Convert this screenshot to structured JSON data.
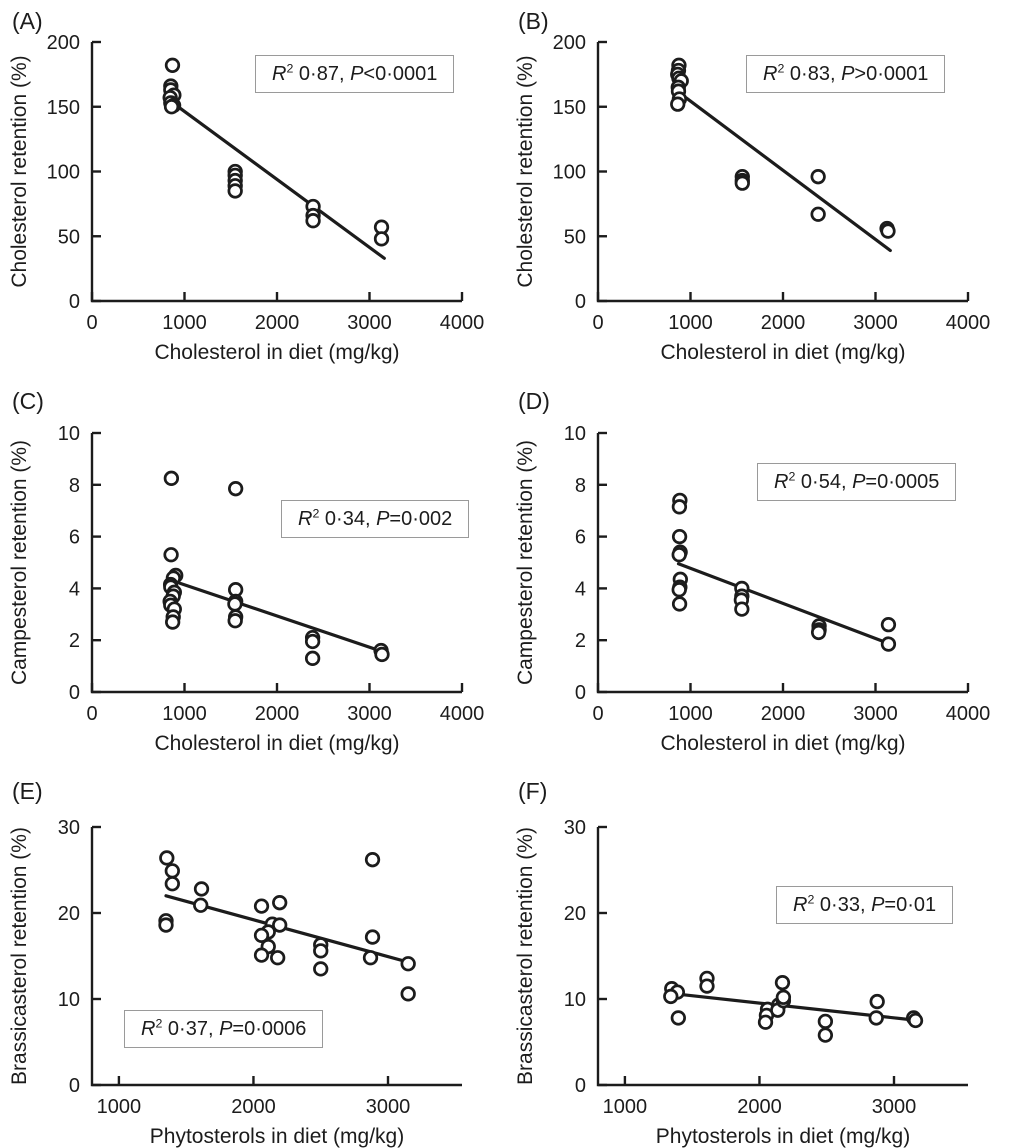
{
  "figure": {
    "description": "Six-panel scatter figure of sterol retention versus dietary sterol content"
  },
  "chart_data": [
    {
      "type": "scatter",
      "panel_label": "(A)",
      "xlabel": "Cholesterol in diet (mg/kg)",
      "ylabel": "Cholesterol retention (%)",
      "xlim": [
        0,
        4000
      ],
      "ylim": [
        0,
        200
      ],
      "xticks": [
        0,
        1000,
        2000,
        3000,
        4000
      ],
      "yticks": [
        0,
        50,
        100,
        150,
        200
      ],
      "grid": false,
      "points": [
        [
          870,
          182
        ],
        [
          852,
          166
        ],
        [
          852,
          163
        ],
        [
          885,
          159
        ],
        [
          845,
          157
        ],
        [
          852,
          153
        ],
        [
          882,
          151
        ],
        [
          860,
          150
        ],
        [
          1548,
          100
        ],
        [
          1548,
          97
        ],
        [
          1548,
          93
        ],
        [
          1548,
          89
        ],
        [
          1548,
          85
        ],
        [
          2390,
          73
        ],
        [
          2390,
          66
        ],
        [
          2390,
          62
        ],
        [
          3130,
          57
        ],
        [
          3130,
          48
        ]
      ],
      "regression_line": [
        [
          950,
          149
        ],
        [
          3160,
          33
        ]
      ],
      "annotation_text": "R2 0·87, P<0·0001",
      "annotation": {
        "r_symbol": "R",
        "r_sup": "2",
        "r_rest": " 0·87, ",
        "p_symbol": "P",
        "p_rest": "<0·0001"
      },
      "annotation_pos": {
        "fx": 0.44,
        "fy": 0.05
      }
    },
    {
      "type": "scatter",
      "panel_label": "(B)",
      "xlabel": "Cholesterol in diet (mg/kg)",
      "ylabel": "Cholesterol retention (%)",
      "xlim": [
        0,
        4000
      ],
      "ylim": [
        0,
        200
      ],
      "xticks": [
        0,
        1000,
        2000,
        3000,
        4000
      ],
      "yticks": [
        0,
        50,
        100,
        150,
        200
      ],
      "grid": false,
      "points": [
        [
          875,
          182
        ],
        [
          870,
          178
        ],
        [
          862,
          175
        ],
        [
          875,
          172
        ],
        [
          900,
          170
        ],
        [
          868,
          165
        ],
        [
          870,
          162
        ],
        [
          880,
          156
        ],
        [
          862,
          152
        ],
        [
          1560,
          96
        ],
        [
          1560,
          93
        ],
        [
          1560,
          91
        ],
        [
          2380,
          96
        ],
        [
          2380,
          67
        ],
        [
          3125,
          56
        ],
        [
          3135,
          54
        ]
      ],
      "regression_line": [
        [
          950,
          157
        ],
        [
          3160,
          39
        ]
      ],
      "annotation_text": "R2 0·83, P>0·0001",
      "annotation": {
        "r_symbol": "R",
        "r_sup": "2",
        "r_rest": " 0·83, ",
        "p_symbol": "P",
        "p_rest": ">0·0001"
      },
      "annotation_pos": {
        "fx": 0.4,
        "fy": 0.05
      }
    },
    {
      "type": "scatter",
      "panel_label": "(C)",
      "xlabel": "Cholesterol in diet (mg/kg)",
      "ylabel": "Campesterol retention (%)",
      "xlim": [
        0,
        4000
      ],
      "ylim": [
        0,
        10
      ],
      "xticks": [
        0,
        1000,
        2000,
        3000,
        4000
      ],
      "yticks": [
        0,
        2,
        4,
        6,
        8,
        10
      ],
      "grid": false,
      "points": [
        [
          858,
          8.25
        ],
        [
          855,
          5.3
        ],
        [
          905,
          4.5
        ],
        [
          880,
          4.4
        ],
        [
          850,
          4.15
        ],
        [
          852,
          4.05
        ],
        [
          890,
          3.85
        ],
        [
          878,
          3.7
        ],
        [
          845,
          3.5
        ],
        [
          852,
          3.35
        ],
        [
          890,
          3.2
        ],
        [
          878,
          2.9
        ],
        [
          872,
          2.7
        ],
        [
          1553,
          7.85
        ],
        [
          1553,
          3.95
        ],
        [
          1553,
          3.5
        ],
        [
          1545,
          3.4
        ],
        [
          1553,
          2.9
        ],
        [
          1548,
          2.75
        ],
        [
          2385,
          2.1
        ],
        [
          2385,
          1.95
        ],
        [
          2385,
          1.3
        ],
        [
          3125,
          1.6
        ],
        [
          3135,
          1.45
        ]
      ],
      "regression_line": [
        [
          950,
          4.2
        ],
        [
          3150,
          1.55
        ]
      ],
      "annotation_text": "R2 0·34, P=0·002",
      "annotation": {
        "r_symbol": "R",
        "r_sup": "2",
        "r_rest": " 0·34, ",
        "p_symbol": "P",
        "p_rest": "=0·002"
      },
      "annotation_pos": {
        "fx": 0.51,
        "fy": 0.26
      }
    },
    {
      "type": "scatter",
      "panel_label": "(D)",
      "xlabel": "Cholesterol in diet (mg/kg)",
      "ylabel": "Campesterol retention (%)",
      "xlim": [
        0,
        4000
      ],
      "ylim": [
        0,
        10
      ],
      "xticks": [
        0,
        1000,
        2000,
        3000,
        4000
      ],
      "yticks": [
        0,
        2,
        4,
        6,
        8,
        10
      ],
      "grid": false,
      "points": [
        [
          885,
          7.4
        ],
        [
          880,
          7.15
        ],
        [
          882,
          6.0
        ],
        [
          888,
          5.4
        ],
        [
          878,
          5.3
        ],
        [
          890,
          4.35
        ],
        [
          885,
          4.05
        ],
        [
          878,
          3.95
        ],
        [
          882,
          3.4
        ],
        [
          1555,
          4.0
        ],
        [
          1555,
          3.7
        ],
        [
          1550,
          3.55
        ],
        [
          1555,
          3.2
        ],
        [
          2390,
          2.55
        ],
        [
          2390,
          2.4
        ],
        [
          2385,
          2.3
        ],
        [
          3140,
          2.6
        ],
        [
          3140,
          1.85
        ]
      ],
      "regression_line": [
        [
          870,
          4.95
        ],
        [
          3160,
          1.85
        ]
      ],
      "annotation_text": "R2 0·54, P=0·0005",
      "annotation": {
        "r_symbol": "R",
        "r_sup": "2",
        "r_rest": " 0·54, ",
        "p_symbol": "P",
        "p_rest": "=0·0005"
      },
      "annotation_pos": {
        "fx": 0.43,
        "fy": 0.115
      }
    },
    {
      "type": "scatter",
      "panel_label": "(E)",
      "xlabel": "Phytosterols in diet (mg/kg)",
      "ylabel": "Brassicasterol retention (%)",
      "xlim": [
        800,
        3550
      ],
      "ylim": [
        0,
        30
      ],
      "xticks": [
        1000,
        2000,
        3000
      ],
      "yticks": [
        0,
        10,
        20,
        30
      ],
      "grid": false,
      "points": [
        [
          1356,
          26.4
        ],
        [
          1397,
          24.9
        ],
        [
          1397,
          23.4
        ],
        [
          1350,
          19.1
        ],
        [
          1350,
          18.6
        ],
        [
          1614,
          22.8
        ],
        [
          1608,
          20.9
        ],
        [
          2060,
          20.8
        ],
        [
          2195,
          21.2
        ],
        [
          2140,
          18.7
        ],
        [
          2195,
          18.6
        ],
        [
          2110,
          17.8
        ],
        [
          2060,
          17.4
        ],
        [
          2110,
          16.1
        ],
        [
          2060,
          15.1
        ],
        [
          2180,
          14.8
        ],
        [
          2500,
          16.3
        ],
        [
          2500,
          15.6
        ],
        [
          2500,
          13.5
        ],
        [
          2885,
          26.2
        ],
        [
          2885,
          17.2
        ],
        [
          2870,
          14.8
        ],
        [
          3150,
          14.1
        ],
        [
          3150,
          10.6
        ]
      ],
      "regression_line": [
        [
          1350,
          22.0
        ],
        [
          3170,
          14.2
        ]
      ],
      "annotation_text": "R2 0·37, P=0·0006",
      "annotation": {
        "r_symbol": "R",
        "r_sup": "2",
        "r_rest": " 0·37, ",
        "p_symbol": "P",
        "p_rest": "=0·0006"
      },
      "annotation_pos": {
        "fx": 0.087,
        "fy": 0.71
      }
    },
    {
      "type": "scatter",
      "panel_label": "(F)",
      "xlabel": "Phytosterols in diet (mg/kg)",
      "ylabel": "Brassicasterol retention (%)",
      "xlim": [
        800,
        3550
      ],
      "ylim": [
        0,
        30
      ],
      "xticks": [
        1000,
        2000,
        3000
      ],
      "yticks": [
        0,
        10,
        20,
        30
      ],
      "grid": false,
      "points": [
        [
          1348,
          11.2
        ],
        [
          1390,
          10.8
        ],
        [
          1341,
          10.3
        ],
        [
          1397,
          7.8
        ],
        [
          1610,
          12.4
        ],
        [
          1610,
          11.5
        ],
        [
          2060,
          8.8
        ],
        [
          2052,
          8.1
        ],
        [
          2045,
          7.3
        ],
        [
          2143,
          9.3
        ],
        [
          2136,
          8.7
        ],
        [
          2178,
          9.8
        ],
        [
          2171,
          11.9
        ],
        [
          2178,
          10.2
        ],
        [
          2490,
          7.4
        ],
        [
          2490,
          5.8
        ],
        [
          2875,
          9.7
        ],
        [
          2868,
          7.8
        ],
        [
          3146,
          7.8
        ],
        [
          3160,
          7.5
        ]
      ],
      "regression_line": [
        [
          1430,
          10.5
        ],
        [
          3180,
          7.5
        ]
      ],
      "annotation_text": "R2 0·33, P=0·01",
      "annotation": {
        "r_symbol": "R",
        "r_sup": "2",
        "r_rest": " 0·33, ",
        "p_symbol": "P",
        "p_rest": "=0·01"
      },
      "annotation_pos": {
        "fx": 0.48,
        "fy": 0.228
      }
    }
  ]
}
